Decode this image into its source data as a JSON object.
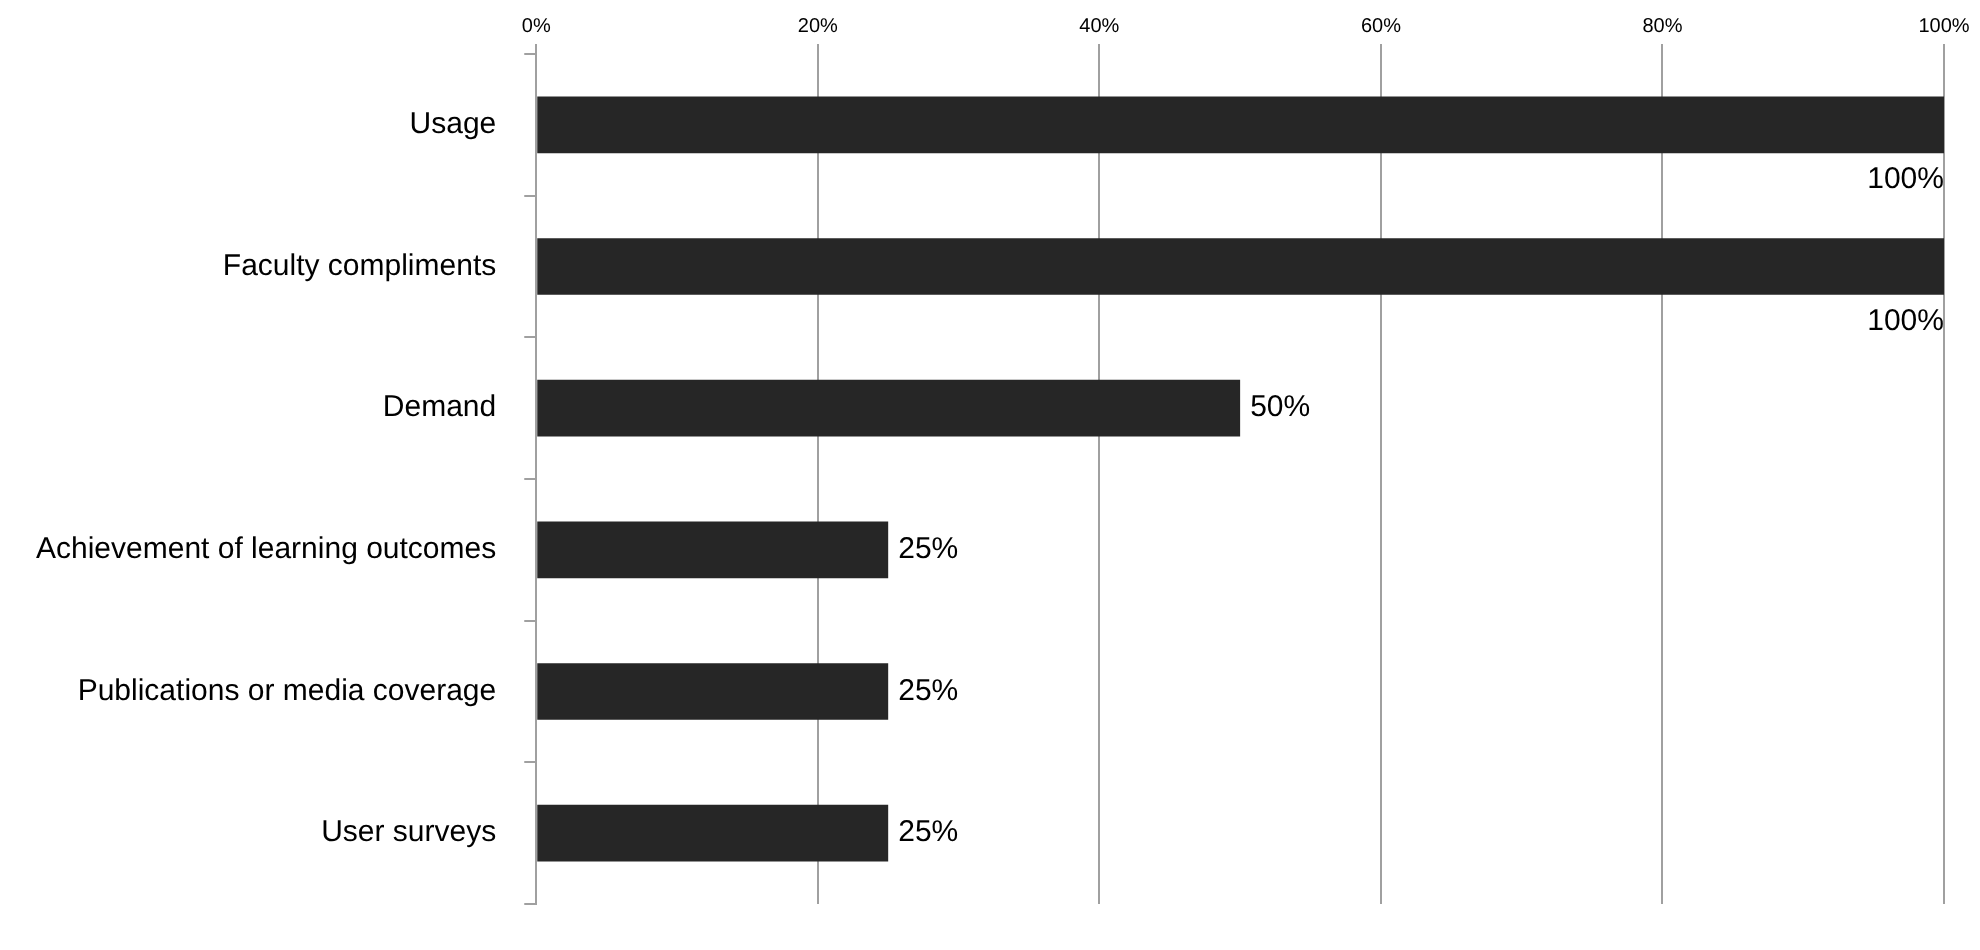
{
  "chart_data": {
    "type": "bar",
    "orientation": "horizontal",
    "categories": [
      "Usage",
      "Faculty compliments",
      "Demand",
      "Achievement of learning outcomes",
      "Publications or media coverage",
      "User surveys"
    ],
    "values": [
      100,
      100,
      50,
      25,
      25,
      25
    ],
    "value_labels": [
      "100%",
      "100%",
      "50%",
      "25%",
      "25%",
      "25%"
    ],
    "color": "#262626",
    "xlim": [
      0,
      100
    ],
    "xticks": [
      {
        "value": 0,
        "label": "0%"
      },
      {
        "value": 20,
        "label": "20%"
      },
      {
        "value": 40,
        "label": "40%"
      },
      {
        "value": 60,
        "label": "60%"
      },
      {
        "value": 80,
        "label": "80%"
      },
      {
        "value": 100,
        "label": "100%"
      }
    ],
    "grid": "x",
    "legend": false
  }
}
